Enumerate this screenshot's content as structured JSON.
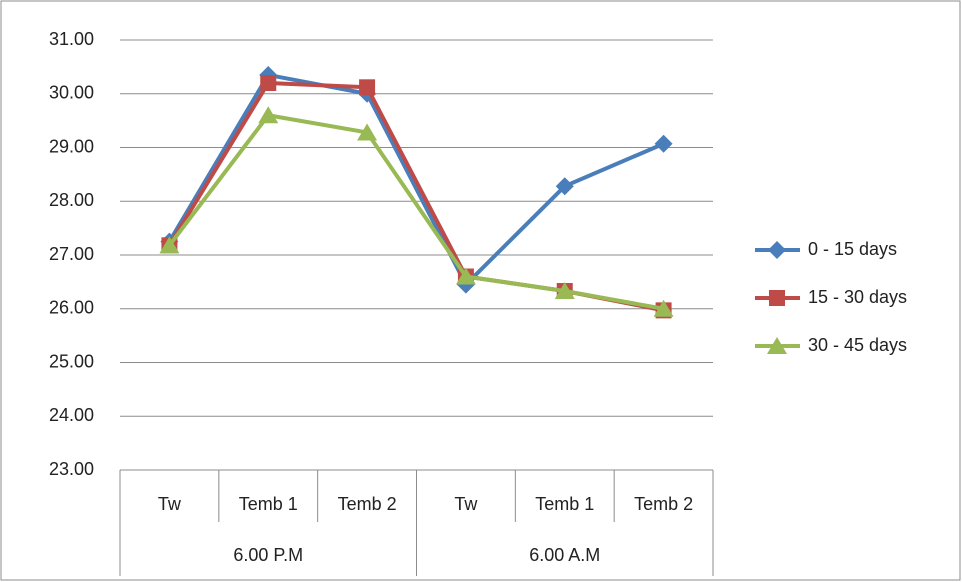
{
  "chart_data": {
    "type": "line",
    "categories": [
      "Tw",
      "Temb 1",
      "Temb 2",
      "Tw",
      "Temb 1",
      "Temb 2"
    ],
    "groups": [
      "6.00 P.M",
      "6.00 A.M"
    ],
    "series": [
      {
        "name": "0 - 15 days",
        "color": "#4a7ebb",
        "marker": "diamond",
        "values": [
          27.25,
          30.35,
          30.0,
          26.45,
          28.28,
          29.07
        ]
      },
      {
        "name": "15 - 30 days",
        "color": "#be4b48",
        "marker": "square",
        "values": [
          27.18,
          30.2,
          30.12,
          26.6,
          26.33,
          25.97
        ]
      },
      {
        "name": "30 - 45 days",
        "color": "#98b954",
        "marker": "triangle",
        "values": [
          27.18,
          29.6,
          29.28,
          26.6,
          26.33,
          26.0
        ]
      }
    ],
    "ylim": [
      23,
      31
    ],
    "yticks": [
      {
        "value": 23,
        "label": "23.00"
      },
      {
        "value": 24,
        "label": "24.00"
      },
      {
        "value": 25,
        "label": "25.00"
      },
      {
        "value": 26,
        "label": "26.00"
      },
      {
        "value": 27,
        "label": "27.00"
      },
      {
        "value": 28,
        "label": "28.00"
      },
      {
        "value": 29,
        "label": "29.00"
      },
      {
        "value": 30,
        "label": "30.00"
      },
      {
        "value": 31,
        "label": "31.00"
      }
    ],
    "grid": true,
    "legend": "right"
  }
}
